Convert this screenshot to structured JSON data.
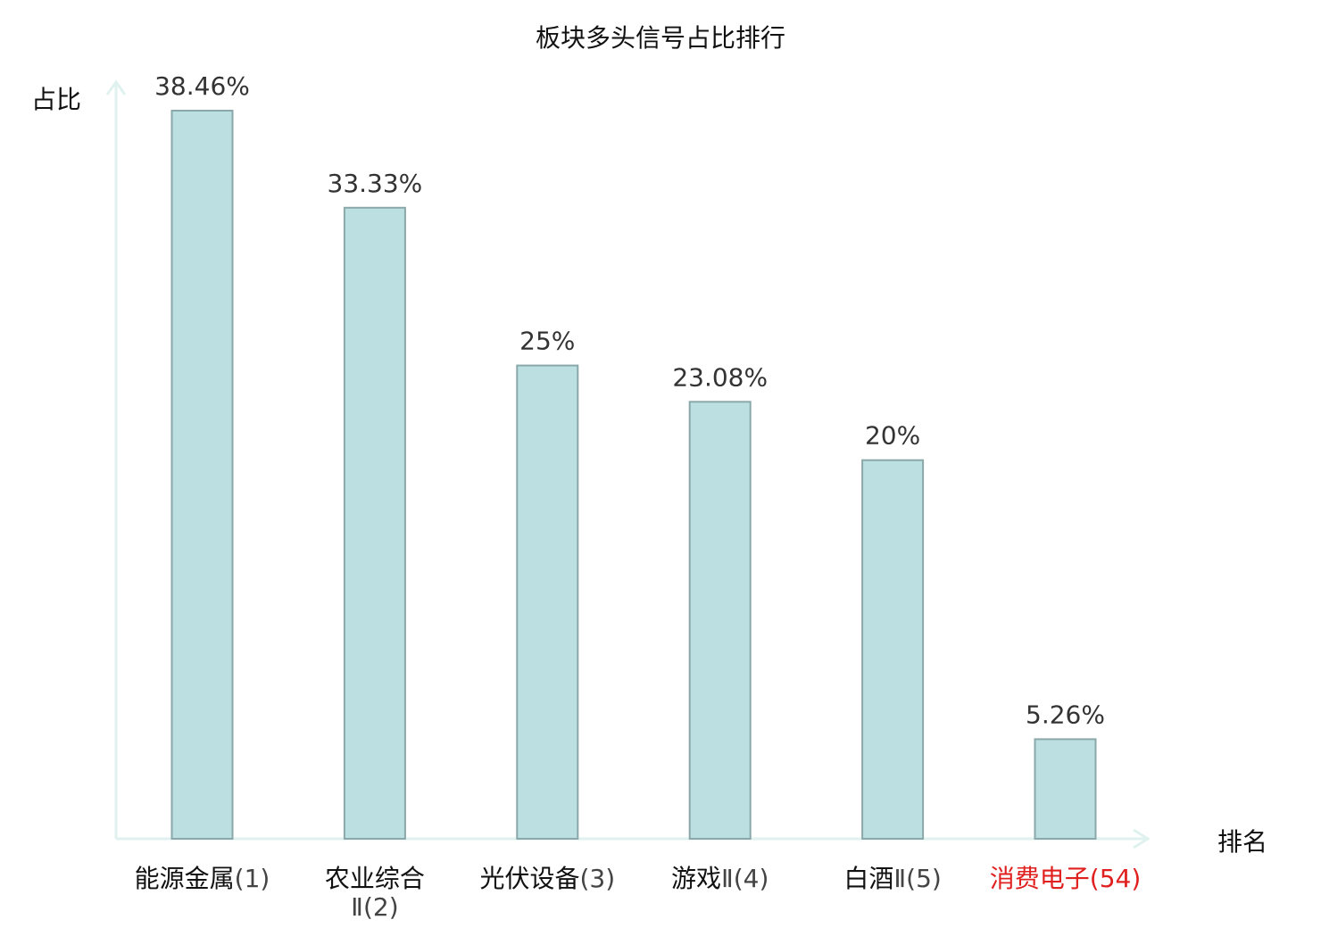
{
  "chart_data": {
    "type": "bar",
    "title": "板块多头信号占比排行",
    "ylabel": "占比",
    "xlabel": "排名",
    "ylim": [
      0,
      40
    ],
    "categories": [
      {
        "name": "能源金属",
        "rank": "(1)",
        "highlight": false
      },
      {
        "name": "农业综合",
        "rank": "Ⅱ(2)",
        "highlight": false
      },
      {
        "name": "光伏设备",
        "rank": "(3)",
        "highlight": false
      },
      {
        "name": "游戏",
        "rank": "Ⅱ(4)",
        "highlight": false
      },
      {
        "name": "白酒",
        "rank": "Ⅱ(5)",
        "highlight": false
      },
      {
        "name": "消费电子",
        "rank": "(54)",
        "highlight": true
      }
    ],
    "values": [
      38.46,
      33.33,
      25,
      23.08,
      20,
      5.26
    ],
    "value_labels": [
      "38.46%",
      "33.33%",
      "25%",
      "23.08%",
      "20%",
      "5.26%"
    ],
    "grid": false,
    "legend": "none",
    "colors": {
      "bar_fill": "#bce0e2",
      "bar_stroke": "#8aa8aa",
      "axis": "#e0f2ef",
      "highlight": "#e0201f"
    }
  }
}
